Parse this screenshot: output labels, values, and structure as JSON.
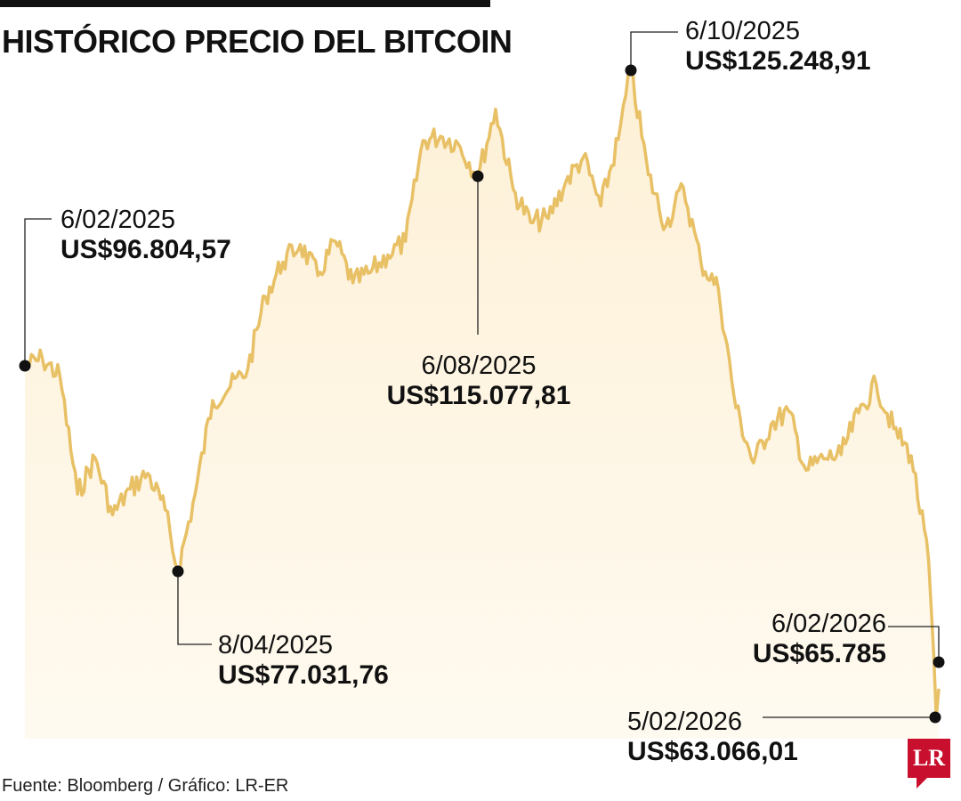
{
  "header": {
    "title": "HISTÓRICO PRECIO DEL BITCOIN"
  },
  "footer": {
    "source": "Fuente: Bloomberg / Gráfico: LR-ER",
    "logo_text": "LR"
  },
  "colors": {
    "line": "#e8c065",
    "fill": "#fdf3df",
    "watermark": "#f6dfa6",
    "logo": "#c8102e"
  },
  "chart_data": {
    "type": "area",
    "title": "HISTÓRICO PRECIO DEL BITCOIN",
    "xlabel": "",
    "ylabel": "",
    "ylim": [
      55000,
      132000
    ],
    "grid": false,
    "legend": "none",
    "x": [
      "2025-02-06",
      "2025-02-13",
      "2025-02-20",
      "2025-02-27",
      "2025-03-06",
      "2025-03-13",
      "2025-03-20",
      "2025-03-27",
      "2025-04-03",
      "2025-04-08",
      "2025-04-15",
      "2025-04-22",
      "2025-04-29",
      "2025-05-06",
      "2025-05-13",
      "2025-05-20",
      "2025-05-27",
      "2025-06-03",
      "2025-06-10",
      "2025-06-17",
      "2025-06-24",
      "2025-07-01",
      "2025-07-08",
      "2025-07-15",
      "2025-07-22",
      "2025-07-29",
      "2025-08-06",
      "2025-08-13",
      "2025-08-20",
      "2025-08-27",
      "2025-09-03",
      "2025-09-10",
      "2025-09-17",
      "2025-09-24",
      "2025-10-01",
      "2025-10-06",
      "2025-10-13",
      "2025-10-20",
      "2025-10-27",
      "2025-11-03",
      "2025-11-10",
      "2025-11-17",
      "2025-11-24",
      "2025-12-01",
      "2025-12-08",
      "2025-12-15",
      "2025-12-22",
      "2025-12-29",
      "2026-01-05",
      "2026-01-12",
      "2026-01-19",
      "2026-01-26",
      "2026-02-02",
      "2026-02-05",
      "2026-02-06"
    ],
    "values": [
      96804.57,
      97500,
      95800,
      84500,
      88000,
      82500,
      85000,
      86500,
      83000,
      77031.76,
      84500,
      93500,
      94800,
      96500,
      103500,
      106800,
      108500,
      105500,
      108800,
      104800,
      105800,
      107500,
      108800,
      118500,
      118900,
      118200,
      115077.81,
      121500,
      113800,
      110600,
      111000,
      114500,
      116900,
      112200,
      118600,
      125248.91,
      115200,
      110300,
      114000,
      106800,
      104200,
      92800,
      87500,
      91200,
      92500,
      86800,
      87900,
      88300,
      92300,
      95100,
      90800,
      88200,
      78000,
      63066.01,
      65785
    ],
    "annotations": [
      {
        "date": "6/02/2025",
        "price": "US$96.804,57"
      },
      {
        "date": "8/04/2025",
        "price": "US$77.031,76"
      },
      {
        "date": "6/08/2025",
        "price": "US$115.077,81"
      },
      {
        "date": "6/10/2025",
        "price": "US$125.248,91"
      },
      {
        "date": "6/02/2026",
        "price": "US$65.785"
      },
      {
        "date": "5/02/2026",
        "price": "US$63.066,01"
      }
    ]
  }
}
